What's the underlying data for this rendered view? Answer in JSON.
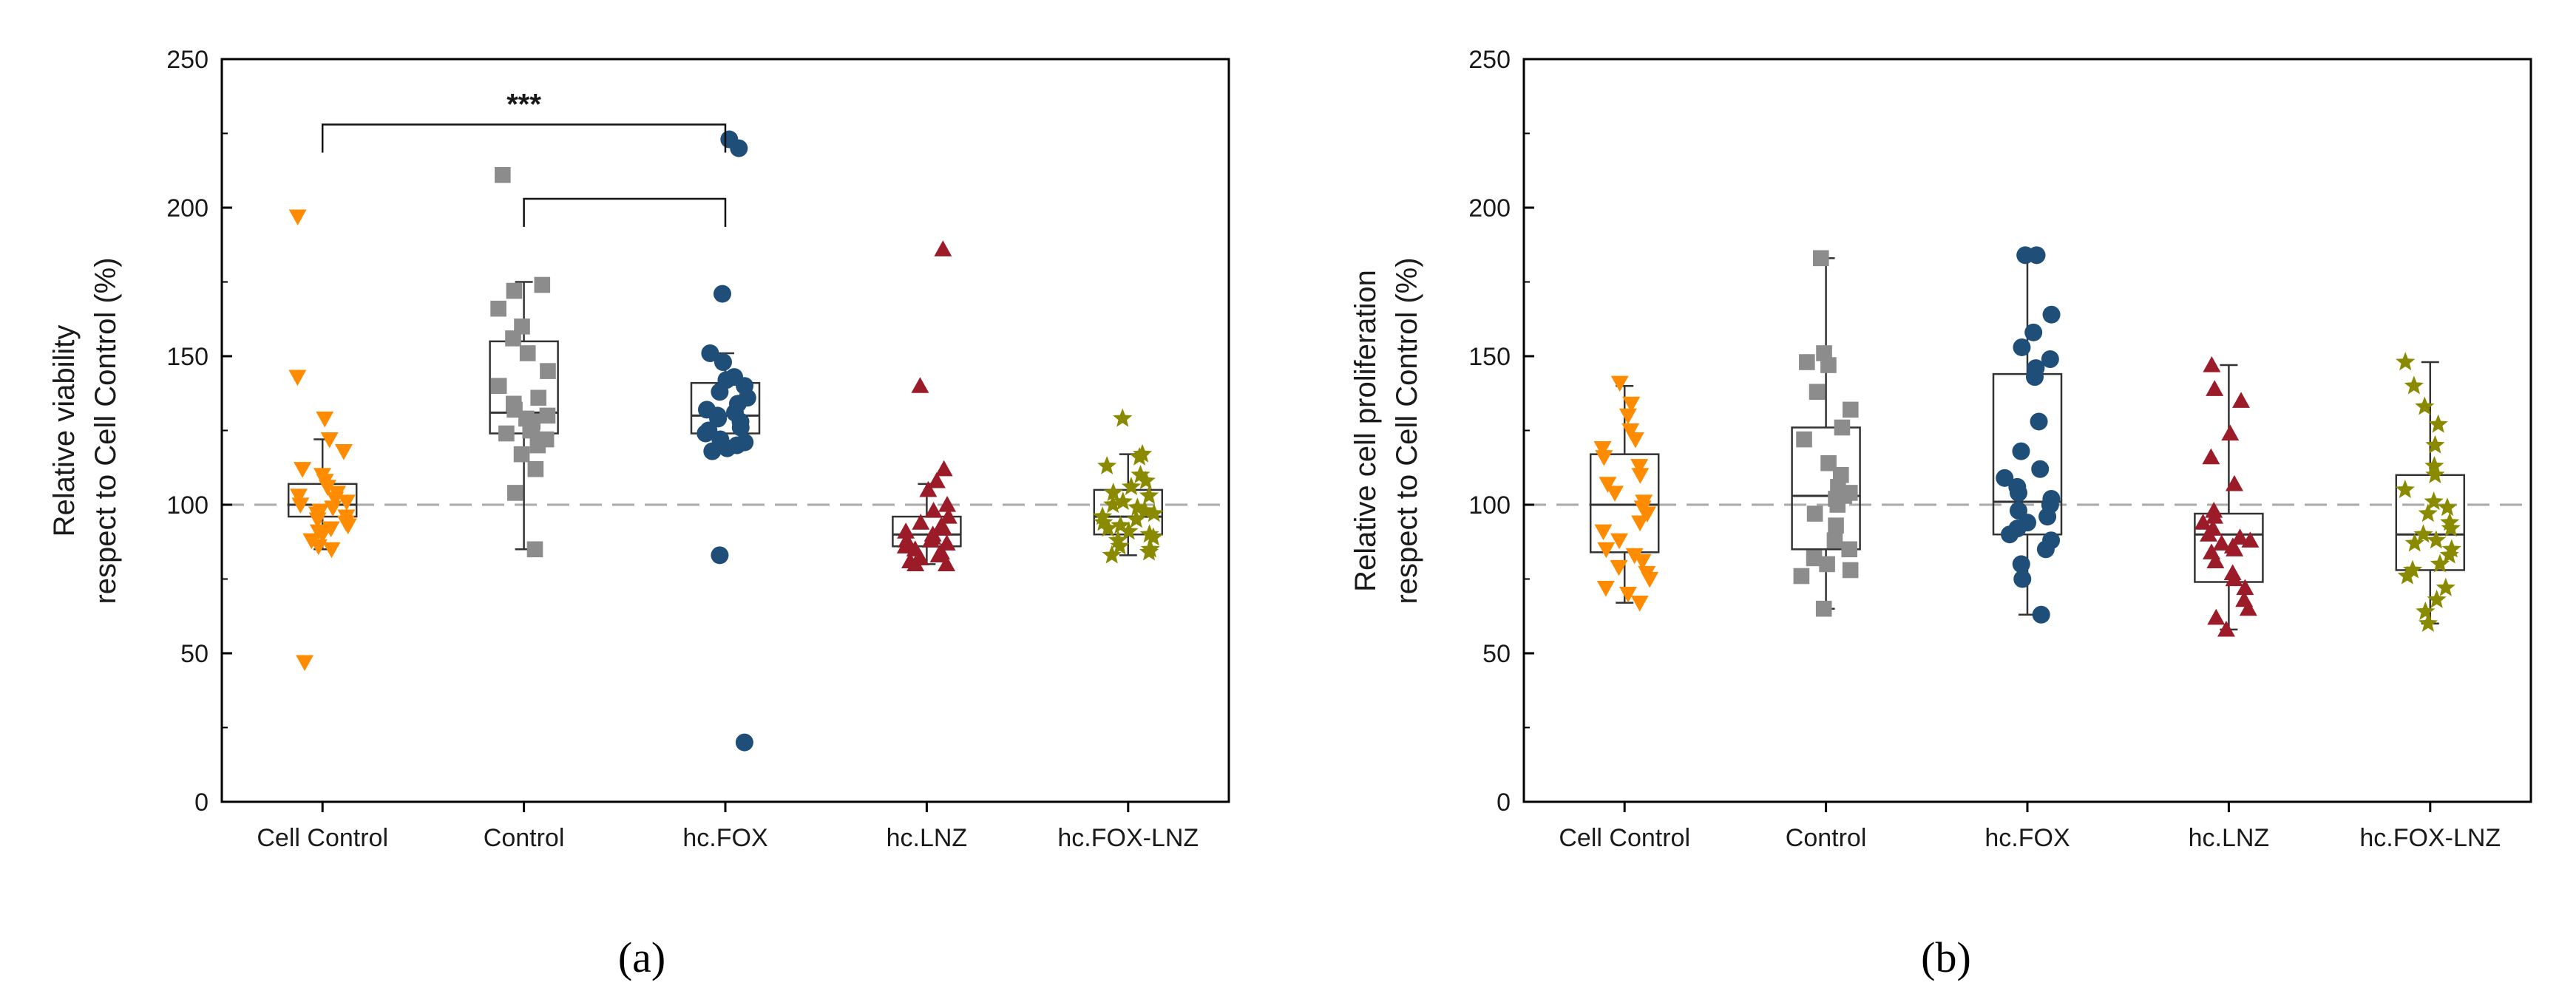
{
  "chart_data": [
    {
      "type": "box-scatter",
      "panel_label": "(a)",
      "ylabel_lines": [
        "Relative viability",
        "respect to Cell Control (%)"
      ],
      "ylim": [
        0,
        250
      ],
      "yticks": [
        0,
        50,
        100,
        150,
        200,
        250
      ],
      "reference_line": 100,
      "categories": [
        "Cell Control",
        "Control",
        "hc.FOX",
        "hc.LNZ",
        "hc.FOX-LNZ"
      ],
      "series": [
        {
          "name": "Cell Control",
          "color": "#ff8c00",
          "marker": "triangle-down",
          "box": {
            "q1": 96,
            "median": 100,
            "q3": 107,
            "whisker_low": 85,
            "whisker_high": 122
          },
          "points": [
            197,
            143,
            129,
            122,
            118,
            112,
            110,
            108,
            106,
            104,
            103,
            102,
            101,
            100,
            99,
            98,
            97,
            96,
            95,
            94,
            93,
            92,
            91,
            90,
            88,
            86,
            85,
            47
          ]
        },
        {
          "name": "Control",
          "color": "#8c8c8c",
          "marker": "square",
          "box": {
            "q1": 124,
            "median": 131,
            "q3": 155,
            "whisker_low": 85,
            "whisker_high": 175
          },
          "points": [
            211,
            174,
            172,
            166,
            160,
            156,
            151,
            145,
            140,
            136,
            134,
            132,
            130,
            129,
            128,
            126,
            125,
            124,
            122,
            120,
            117,
            112,
            104,
            85
          ]
        },
        {
          "name": "hc.FOX",
          "color": "#1f4e79",
          "marker": "circle",
          "box": {
            "q1": 124,
            "median": 130,
            "q3": 141,
            "whisker_low": 118,
            "whisker_high": 151
          },
          "points": [
            223,
            220,
            171,
            151,
            148,
            143,
            142,
            140,
            138,
            136,
            134,
            132,
            131,
            130,
            129,
            128,
            126,
            125,
            124,
            122,
            121,
            120,
            119,
            118,
            83,
            20
          ]
        },
        {
          "name": "hc.LNZ",
          "color": "#9b1c28",
          "marker": "triangle-up",
          "box": {
            "q1": 86,
            "median": 90,
            "q3": 96,
            "whisker_low": 80,
            "whisker_high": 107
          },
          "points": [
            186,
            140,
            112,
            108,
            105,
            100,
            98,
            96,
            94,
            93,
            92,
            91,
            90,
            89,
            88,
            88,
            87,
            86,
            85,
            84,
            83,
            82,
            81,
            80,
            80
          ]
        },
        {
          "name": "hc.FOX-LNZ",
          "color": "#8a8a00",
          "marker": "star",
          "box": {
            "q1": 90,
            "median": 96,
            "q3": 105,
            "whisker_low": 83,
            "whisker_high": 117
          },
          "points": [
            129,
            117,
            116,
            113,
            110,
            108,
            106,
            104,
            103,
            101,
            100,
            99,
            98,
            97,
            96,
            95,
            94,
            93,
            92,
            91,
            90,
            89,
            88,
            86,
            85,
            84,
            83
          ]
        }
      ],
      "significance": [
        {
          "from": "Cell Control",
          "to": "hc.FOX",
          "y": 228,
          "label": "***"
        },
        {
          "from": "Control",
          "to": "hc.FOX",
          "y": 203,
          "label": ""
        }
      ]
    },
    {
      "type": "box-scatter",
      "panel_label": "(b)",
      "ylabel_lines": [
        "Relative cell proliferation",
        "respect to Cell Control (%)"
      ],
      "ylim": [
        0,
        250
      ],
      "yticks": [
        0,
        50,
        100,
        150,
        200,
        250
      ],
      "reference_line": 100,
      "categories": [
        "Cell Control",
        "Control",
        "hc.FOX",
        "hc.LNZ",
        "hc.FOX-LNZ"
      ],
      "series": [
        {
          "name": "Cell Control",
          "color": "#ff8c00",
          "marker": "triangle-down",
          "box": {
            "q1": 84,
            "median": 100,
            "q3": 117,
            "whisker_low": 67,
            "whisker_high": 140
          },
          "points": [
            141,
            134,
            130,
            125,
            122,
            119,
            116,
            113,
            110,
            107,
            104,
            101,
            99,
            97,
            94,
            91,
            88,
            85,
            83,
            81,
            79,
            77,
            75,
            72,
            70,
            67
          ]
        },
        {
          "name": "Control",
          "color": "#8c8c8c",
          "marker": "square",
          "box": {
            "q1": 85,
            "median": 103,
            "q3": 126,
            "whisker_low": 65,
            "whisker_high": 183
          },
          "points": [
            183,
            151,
            148,
            147,
            138,
            132,
            126,
            122,
            114,
            110,
            106,
            104,
            103,
            102,
            100,
            97,
            93,
            88,
            85,
            82,
            80,
            78,
            76,
            65
          ]
        },
        {
          "name": "hc.FOX",
          "color": "#1f4e79",
          "marker": "circle",
          "box": {
            "q1": 90,
            "median": 101,
            "q3": 144,
            "whisker_low": 63,
            "whisker_high": 184
          },
          "points": [
            184,
            184,
            164,
            158,
            153,
            149,
            146,
            143,
            128,
            118,
            112,
            109,
            106,
            104,
            102,
            100,
            98,
            96,
            94,
            92,
            90,
            88,
            85,
            80,
            75,
            63
          ]
        },
        {
          "name": "hc.LNZ",
          "color": "#9b1c28",
          "marker": "triangle-up",
          "box": {
            "q1": 74,
            "median": 90,
            "q3": 97,
            "whisker_low": 58,
            "whisker_high": 147
          },
          "points": [
            147,
            139,
            135,
            124,
            116,
            107,
            98,
            96,
            94,
            92,
            90,
            89,
            88,
            87,
            86,
            85,
            84,
            81,
            77,
            75,
            72,
            68,
            65,
            62,
            58
          ]
        },
        {
          "name": "hc.FOX-LNZ",
          "color": "#8a8a00",
          "marker": "star",
          "box": {
            "q1": 78,
            "median": 90,
            "q3": 110,
            "whisker_low": 60,
            "whisker_high": 148
          },
          "points": [
            148,
            140,
            133,
            127,
            120,
            113,
            110,
            105,
            101,
            99,
            97,
            94,
            92,
            90,
            88,
            87,
            85,
            83,
            80,
            78,
            76,
            72,
            68,
            64,
            60
          ]
        }
      ],
      "significance": []
    }
  ]
}
